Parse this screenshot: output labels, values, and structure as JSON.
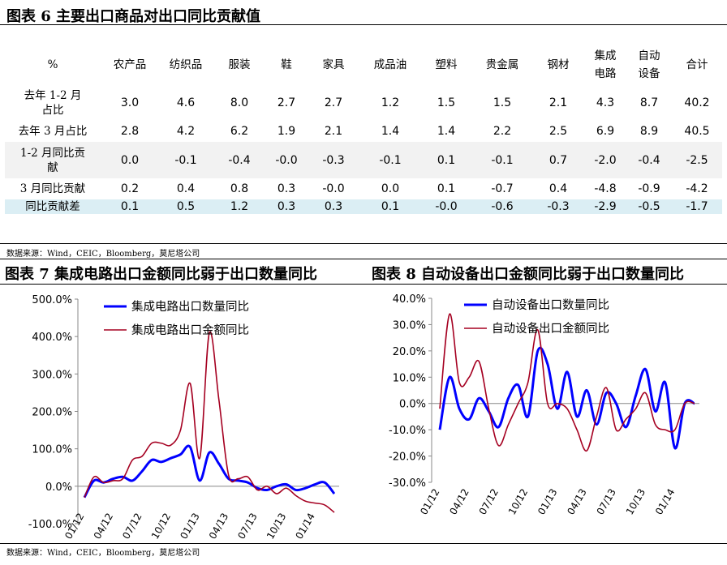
{
  "figure6": {
    "title": "图表 6 主要出口商品对出口同比贡献值",
    "columns": [
      "%",
      "农产品",
      "纺织品",
      "服装",
      "鞋",
      "家具",
      "成品油",
      "塑料",
      "贵金属",
      "钢材",
      "集成电路",
      "自动设备",
      "合计"
    ],
    "rows": [
      {
        "label": "去年 1-2 月占比",
        "values": [
          "3.0",
          "4.6",
          "8.0",
          "2.7",
          "2.7",
          "1.2",
          "1.5",
          "1.5",
          "2.1",
          "4.3",
          "8.7",
          "40.2"
        ]
      },
      {
        "label": "去年 3 月占比",
        "values": [
          "2.8",
          "4.2",
          "6.2",
          "1.9",
          "2.1",
          "1.4",
          "1.4",
          "2.2",
          "2.5",
          "6.9",
          "8.9",
          "40.5"
        ]
      },
      {
        "label": "1-2 月同比贡献",
        "values": [
          "0.0",
          "-0.1",
          "-0.4",
          "-0.0",
          "-0.3",
          "-0.1",
          "0.1",
          "-0.1",
          "0.7",
          "-2.0",
          "-0.4",
          "-2.5"
        ]
      },
      {
        "label": "3 月同比贡献",
        "values": [
          "0.2",
          "0.4",
          "0.8",
          "0.3",
          "-0.0",
          "0.0",
          "0.1",
          "-0.7",
          "0.4",
          "-4.8",
          "-0.9",
          "-4.2"
        ]
      },
      {
        "label": "同比贡献差",
        "values": [
          "0.1",
          "0.5",
          "1.2",
          "0.3",
          "0.3",
          "0.1",
          "-0.0",
          "-0.6",
          "-0.3",
          "-2.9",
          "-0.5",
          "-1.7"
        ]
      }
    ],
    "source": "数据来源：Wind，CEIC，Bloomberg，莫尼塔公司"
  },
  "chart_data": [
    {
      "type": "line",
      "title": "图表 7 集成电路出口金额同比弱于出口数量同比",
      "x": [
        "01/12",
        "02/12",
        "03/12",
        "04/12",
        "05/12",
        "06/12",
        "07/12",
        "08/12",
        "09/12",
        "10/12",
        "11/12",
        "12/12",
        "01/13",
        "02/13",
        "03/13",
        "04/13",
        "05/13",
        "06/13",
        "07/13",
        "08/13",
        "09/13",
        "10/13",
        "11/13",
        "12/13",
        "01/14",
        "02/14",
        "03/14"
      ],
      "x_tick_labels": [
        "01/12",
        "04/12",
        "07/12",
        "10/12",
        "01/13",
        "04/13",
        "07/13",
        "10/13",
        "01/14"
      ],
      "ylim": [
        -100,
        500
      ],
      "y_ticks": [
        -100,
        0,
        100,
        200,
        300,
        400,
        500
      ],
      "y_tick_labels": [
        "-100.0%",
        "0.0%",
        "100.0%",
        "200.0%",
        "300.0%",
        "400.0%",
        "500.0%"
      ],
      "grid": false,
      "legend": "top-right",
      "series": [
        {
          "name": "集成电路出口数量同比",
          "color": "#0000ff",
          "values": [
            -30,
            15,
            10,
            20,
            25,
            15,
            40,
            70,
            65,
            75,
            85,
            105,
            15,
            90,
            60,
            20,
            15,
            10,
            -5,
            -10,
            0,
            5,
            -10,
            -5,
            5,
            10,
            -20
          ]
        },
        {
          "name": "集成电路出口金额同比",
          "color": "#a50021",
          "values": [
            -30,
            25,
            10,
            15,
            20,
            70,
            80,
            115,
            115,
            110,
            150,
            275,
            75,
            410,
            230,
            30,
            20,
            25,
            -10,
            0,
            -20,
            -5,
            -25,
            -40,
            -45,
            -50,
            -70
          ]
        }
      ]
    },
    {
      "type": "line",
      "title": "图表 8 自动设备出口金额同比弱于出口数量同比",
      "x": [
        "01/12",
        "02/12",
        "03/12",
        "04/12",
        "05/12",
        "06/12",
        "07/12",
        "08/12",
        "09/12",
        "10/12",
        "11/12",
        "12/12",
        "01/13",
        "02/13",
        "03/13",
        "04/13",
        "05/13",
        "06/13",
        "07/13",
        "08/13",
        "09/13",
        "10/13",
        "11/13",
        "12/13",
        "01/14",
        "02/14",
        "03/14"
      ],
      "x_tick_labels": [
        "01/12",
        "04/12",
        "07/12",
        "10/12",
        "01/13",
        "04/13",
        "07/13",
        "10/13",
        "01/14"
      ],
      "ylim": [
        -30,
        40
      ],
      "y_ticks": [
        -30,
        -20,
        -10,
        0,
        10,
        20,
        30,
        40
      ],
      "y_tick_labels": [
        "-30.0%",
        "-20.0%",
        "-10.0%",
        "0.0%",
        "10.0%",
        "20.0%",
        "30.0%",
        "40.0%"
      ],
      "grid": false,
      "legend": "top-right",
      "series": [
        {
          "name": "自动设备出口数量同比",
          "color": "#0000ff",
          "values": [
            -10,
            10,
            -2,
            -6,
            2,
            -3,
            -9,
            2,
            7,
            -5,
            20,
            15,
            -2,
            12,
            -5,
            5,
            -8,
            4,
            0,
            -9,
            3,
            13,
            -3,
            8,
            -17,
            0,
            0
          ]
        },
        {
          "name": "自动设备出口金额同比",
          "color": "#a50021",
          "values": [
            -2,
            34,
            8,
            10,
            16,
            -2,
            -16,
            -8,
            0,
            8,
            28,
            0,
            0,
            -2,
            -10,
            -18,
            -5,
            6,
            -10,
            -6,
            -2,
            4,
            -8,
            -10,
            -10,
            0,
            0
          ]
        }
      ]
    }
  ],
  "figure7_source": "数据来源：Wind，CEIC，Bloomberg，莫尼塔公司"
}
